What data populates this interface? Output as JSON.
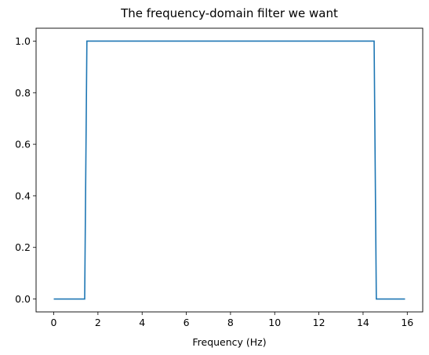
{
  "chart_data": {
    "type": "line",
    "title": "The frequency-domain filter we want",
    "xlabel": "Frequency (Hz)",
    "ylabel": "",
    "xlim": [
      -0.8,
      16.7
    ],
    "ylim": [
      -0.05,
      1.05
    ],
    "xticks": [
      0,
      2,
      4,
      6,
      8,
      10,
      12,
      14,
      16
    ],
    "yticks": [
      0.0,
      0.2,
      0.4,
      0.6,
      0.8,
      1.0
    ],
    "xtick_labels": [
      "0",
      "2",
      "4",
      "6",
      "8",
      "10",
      "12",
      "14",
      "16"
    ],
    "ytick_labels": [
      "0.0",
      "0.2",
      "0.4",
      "0.6",
      "0.8",
      "1.0"
    ],
    "grid": false,
    "series": [
      {
        "color": "#1f77b4",
        "x": [
          0.0,
          1.4,
          1.5,
          14.5,
          14.6,
          15.9
        ],
        "y": [
          0,
          0,
          1,
          1,
          0,
          0
        ]
      }
    ]
  }
}
